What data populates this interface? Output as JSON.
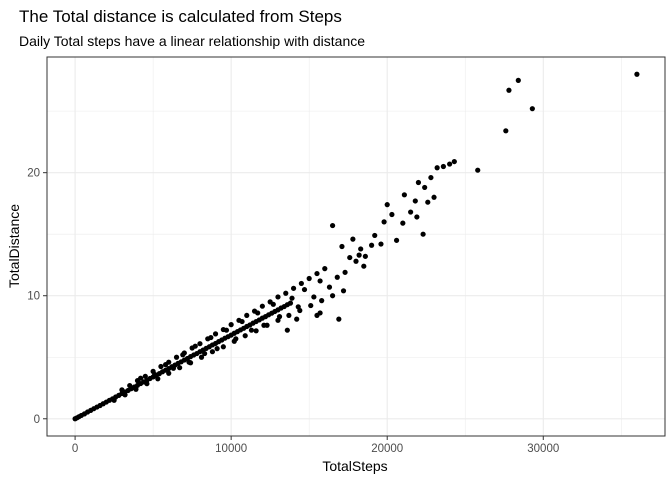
{
  "chart_data": {
    "type": "scatter",
    "title": "The Total distance is calculated from Steps",
    "subtitle": "Daily Total steps have a linear relationship with distance",
    "xlabel": "TotalSteps",
    "ylabel": "TotalDistance",
    "xlim": [
      -1800,
      37800
    ],
    "ylim": [
      -1.4,
      29.4
    ],
    "x_ticks": [
      0,
      10000,
      20000,
      30000
    ],
    "x_tick_labels": [
      "0",
      "10000",
      "20000",
      "30000"
    ],
    "y_ticks": [
      0,
      10,
      20
    ],
    "y_tick_labels": [
      "0",
      "10",
      "20"
    ],
    "grid": true,
    "legend": "none",
    "colors": {
      "point": "#000000",
      "grid": "#ebebeb",
      "panel_border": "#333333"
    },
    "points": [
      [
        0,
        0
      ],
      [
        120,
        0.08
      ],
      [
        250,
        0.17
      ],
      [
        400,
        0.27
      ],
      [
        600,
        0.4
      ],
      [
        800,
        0.55
      ],
      [
        1000,
        0.68
      ],
      [
        1200,
        0.82
      ],
      [
        1400,
        0.95
      ],
      [
        1600,
        1.08
      ],
      [
        1800,
        1.22
      ],
      [
        2000,
        1.36
      ],
      [
        2200,
        1.5
      ],
      [
        2400,
        1.62
      ],
      [
        2600,
        1.77
      ],
      [
        2800,
        1.9
      ],
      [
        3000,
        2.05
      ],
      [
        3200,
        2.18
      ],
      [
        3400,
        2.3
      ],
      [
        3600,
        2.45
      ],
      [
        3800,
        2.58
      ],
      [
        4000,
        2.72
      ],
      [
        4200,
        2.86
      ],
      [
        4400,
        3.0
      ],
      [
        4600,
        3.12
      ],
      [
        4800,
        3.27
      ],
      [
        5000,
        3.4
      ],
      [
        5200,
        3.55
      ],
      [
        5400,
        3.67
      ],
      [
        5600,
        3.82
      ],
      [
        5800,
        3.95
      ],
      [
        6000,
        4.08
      ],
      [
        6200,
        4.23
      ],
      [
        6400,
        4.36
      ],
      [
        6600,
        4.5
      ],
      [
        6800,
        4.63
      ],
      [
        7000,
        4.77
      ],
      [
        7200,
        4.9
      ],
      [
        7400,
        5.05
      ],
      [
        7600,
        5.18
      ],
      [
        7800,
        5.3
      ],
      [
        8000,
        5.45
      ],
      [
        8200,
        5.58
      ],
      [
        8400,
        5.72
      ],
      [
        8600,
        5.85
      ],
      [
        8800,
        6.0
      ],
      [
        9000,
        6.12
      ],
      [
        9200,
        6.27
      ],
      [
        9400,
        6.4
      ],
      [
        9600,
        6.55
      ],
      [
        9800,
        6.67
      ],
      [
        10000,
        6.8
      ],
      [
        10200,
        6.95
      ],
      [
        10400,
        7.08
      ],
      [
        10600,
        7.22
      ],
      [
        10800,
        7.35
      ],
      [
        11000,
        7.5
      ],
      [
        11200,
        7.62
      ],
      [
        11400,
        7.77
      ],
      [
        11600,
        7.9
      ],
      [
        11800,
        8.03
      ],
      [
        12000,
        8.18
      ],
      [
        12200,
        8.3
      ],
      [
        12400,
        8.45
      ],
      [
        12600,
        8.58
      ],
      [
        12800,
        8.72
      ],
      [
        13000,
        8.85
      ],
      [
        13200,
        9.0
      ],
      [
        13400,
        9.12
      ],
      [
        13600,
        9.27
      ],
      [
        13800,
        9.4
      ],
      [
        3000,
        2.35
      ],
      [
        3500,
        2.7
      ],
      [
        4000,
        3.1
      ],
      [
        4500,
        3.45
      ],
      [
        5000,
        3.85
      ],
      [
        5500,
        4.25
      ],
      [
        6000,
        4.6
      ],
      [
        6500,
        5.0
      ],
      [
        7000,
        5.35
      ],
      [
        7500,
        5.75
      ],
      [
        8000,
        6.1
      ],
      [
        8500,
        6.5
      ],
      [
        9000,
        6.9
      ],
      [
        9500,
        7.25
      ],
      [
        10000,
        7.65
      ],
      [
        10500,
        8.0
      ],
      [
        11000,
        8.4
      ],
      [
        11500,
        8.75
      ],
      [
        12000,
        9.15
      ],
      [
        12500,
        9.5
      ],
      [
        13000,
        9.9
      ],
      [
        13500,
        10.2
      ],
      [
        14000,
        10.6
      ],
      [
        14500,
        11.0
      ],
      [
        15000,
        11.4
      ],
      [
        15500,
        11.8
      ],
      [
        16000,
        12.2
      ],
      [
        2500,
        1.5
      ],
      [
        3200,
        1.95
      ],
      [
        3900,
        2.4
      ],
      [
        4600,
        2.85
      ],
      [
        5300,
        3.25
      ],
      [
        6000,
        3.7
      ],
      [
        6700,
        4.15
      ],
      [
        7400,
        4.55
      ],
      [
        8100,
        5.0
      ],
      [
        8800,
        5.45
      ],
      [
        9500,
        5.85
      ],
      [
        10200,
        6.3
      ],
      [
        10900,
        6.75
      ],
      [
        11600,
        7.15
      ],
      [
        12300,
        7.6
      ],
      [
        13000,
        8.0
      ],
      [
        13700,
        8.4
      ],
      [
        14400,
        8.8
      ],
      [
        15100,
        9.2
      ],
      [
        15800,
        9.6
      ],
      [
        16500,
        10.0
      ],
      [
        17200,
        10.4
      ],
      [
        4200,
        3.3
      ],
      [
        5100,
        3.6
      ],
      [
        5800,
        4.4
      ],
      [
        6300,
        4.1
      ],
      [
        6900,
        5.2
      ],
      [
        7300,
        4.6
      ],
      [
        7700,
        5.9
      ],
      [
        8300,
        5.3
      ],
      [
        8700,
        6.6
      ],
      [
        9100,
        5.7
      ],
      [
        9700,
        7.2
      ],
      [
        10300,
        6.5
      ],
      [
        10700,
        7.9
      ],
      [
        11300,
        7.2
      ],
      [
        11700,
        8.6
      ],
      [
        12100,
        7.6
      ],
      [
        12700,
        9.3
      ],
      [
        13100,
        8.3
      ],
      [
        13900,
        9.8
      ],
      [
        14300,
        9.1
      ],
      [
        14700,
        10.5
      ],
      [
        15300,
        9.9
      ],
      [
        15700,
        11.2
      ],
      [
        16300,
        10.7
      ],
      [
        16800,
        11.5
      ],
      [
        17300,
        11.9
      ],
      [
        17600,
        13.1
      ],
      [
        18000,
        12.8
      ],
      [
        18300,
        13.8
      ],
      [
        18600,
        13.2
      ],
      [
        19000,
        14.1
      ],
      [
        14200,
        8.1
      ],
      [
        15700,
        8.6
      ],
      [
        13600,
        7.2
      ],
      [
        16900,
        8.1
      ],
      [
        15500,
        8.4
      ],
      [
        16500,
        15.7
      ],
      [
        17100,
        14.0
      ],
      [
        17800,
        14.6
      ],
      [
        18200,
        13.3
      ],
      [
        18500,
        12.4
      ],
      [
        19200,
        14.9
      ],
      [
        19600,
        14.2
      ],
      [
        19800,
        16.0
      ],
      [
        20000,
        17.4
      ],
      [
        20300,
        16.6
      ],
      [
        20600,
        14.5
      ],
      [
        21000,
        15.9
      ],
      [
        21100,
        18.2
      ],
      [
        21500,
        16.8
      ],
      [
        21800,
        17.7
      ],
      [
        21900,
        16.4
      ],
      [
        22000,
        19.2
      ],
      [
        22300,
        15.0
      ],
      [
        22400,
        18.8
      ],
      [
        22600,
        17.6
      ],
      [
        22800,
        19.6
      ],
      [
        23000,
        18.0
      ],
      [
        23200,
        20.4
      ],
      [
        23600,
        20.5
      ],
      [
        24000,
        20.7
      ],
      [
        24300,
        20.9
      ],
      [
        25800,
        20.2
      ],
      [
        27600,
        23.4
      ],
      [
        27800,
        26.7
      ],
      [
        28400,
        27.5
      ],
      [
        29300,
        25.2
      ],
      [
        36000,
        28.0
      ]
    ]
  }
}
